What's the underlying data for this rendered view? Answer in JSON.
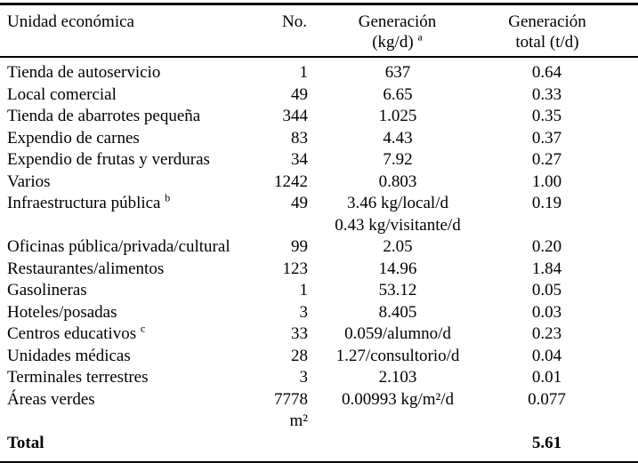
{
  "table": {
    "headers": {
      "unidad": "Unidad económica",
      "no": "No.",
      "generacion_line1": "Generación",
      "generacion_line2": "(kg/d)",
      "generacion_sup": "a",
      "total_line1": "Generación",
      "total_line2": "total (t/d)"
    },
    "rows": [
      {
        "unidad": "Tienda de autoservicio",
        "no": "1",
        "gen": [
          "637"
        ],
        "total": "0.64"
      },
      {
        "unidad": "Local comercial",
        "no": "49",
        "gen": [
          "6.65"
        ],
        "total": "0.33"
      },
      {
        "unidad": "Tienda de abarrotes pequeña",
        "no": "344",
        "gen": [
          "1.025"
        ],
        "total": "0.35"
      },
      {
        "unidad": "Expendio de carnes",
        "no": "83",
        "gen": [
          "4.43"
        ],
        "total": "0.37"
      },
      {
        "unidad": "Expendio de frutas y verduras",
        "no": "34",
        "gen": [
          "7.92"
        ],
        "total": "0.27"
      },
      {
        "unidad": "Varios",
        "no": "1242",
        "gen": [
          "0.803"
        ],
        "total": "1.00"
      },
      {
        "unidad": "Infraestructura pública",
        "unidad_sup": "b",
        "no": "49",
        "gen": [
          "3.46 kg/local/d",
          "0.43 kg/visitante/d"
        ],
        "total": "0.19"
      },
      {
        "unidad": "Oficinas pública/privada/cultural",
        "no": "99",
        "gen": [
          "2.05"
        ],
        "total": "0.20"
      },
      {
        "unidad": "Restaurantes/alimentos",
        "no": "123",
        "gen": [
          "14.96"
        ],
        "total": "1.84"
      },
      {
        "unidad": "Gasolineras",
        "no": "1",
        "gen": [
          "53.12"
        ],
        "total": "0.05"
      },
      {
        "unidad": "Hoteles/posadas",
        "no": "3",
        "gen": [
          "8.405"
        ],
        "total": "0.03"
      },
      {
        "unidad": "Centros educativos",
        "unidad_sup": "c",
        "no": "33",
        "gen": [
          "0.059/alumno/d"
        ],
        "total": "0.23"
      },
      {
        "unidad": "Unidades médicas",
        "no": "28",
        "gen": [
          "1.27/consultorio/d"
        ],
        "total": "0.04"
      },
      {
        "unidad": "Terminales terrestres",
        "no": "3",
        "gen": [
          "2.103"
        ],
        "total": "0.01"
      },
      {
        "unidad": "Áreas verdes",
        "no": "7778 m²",
        "gen": [
          "0.00993 kg/m²/d"
        ],
        "total": "0.077"
      },
      {
        "unidad": "Total",
        "bold": true,
        "no": "",
        "gen": [],
        "total": "5.61"
      }
    ]
  }
}
